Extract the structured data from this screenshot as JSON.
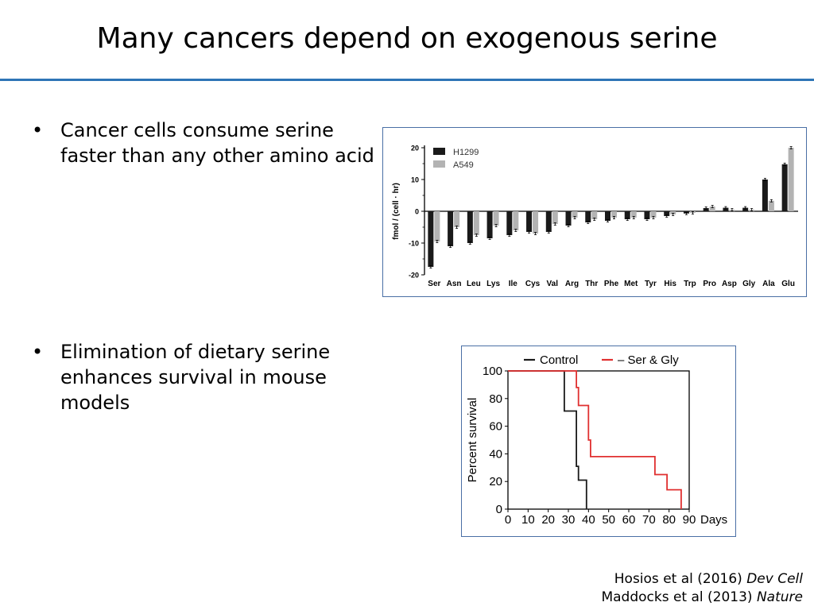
{
  "slide": {
    "title": "Many cancers depend on exogenous serine",
    "rule_color": "#2e75b6",
    "bullets": [
      {
        "symbol": "•",
        "text": "Cancer cells consume serine faster than any other amino acid"
      },
      {
        "symbol": "•",
        "text": "Elimination of dietary serine enhances survival in mouse models"
      }
    ],
    "citations": [
      {
        "authors": "Hosios et al (2016) ",
        "journal": "Dev Cell"
      },
      {
        "authors": "Maddocks et al (2013) ",
        "journal": "Nature"
      }
    ]
  },
  "chart_data": [
    {
      "type": "bar",
      "ylabel": "fmol / (cell · hr)",
      "ylim": [
        -20,
        20
      ],
      "yticks": [
        "20",
        "10",
        "0",
        "-10",
        "-20"
      ],
      "legend_placement": "top-left",
      "categories": [
        "Ser",
        "Asn",
        "Leu",
        "Lys",
        "Ile",
        "Cys",
        "Val",
        "Arg",
        "Thr",
        "Phe",
        "Met",
        "Tyr",
        "His",
        "Trp",
        "Pro",
        "Asp",
        "Gly",
        "Ala",
        "Glu"
      ],
      "series": [
        {
          "name": "H1299",
          "color": "#1a1a1a",
          "values": [
            -17.5,
            -11,
            -10,
            -8.5,
            -7.5,
            -6.5,
            -6.5,
            -4.5,
            -3.5,
            -3,
            -2.5,
            -2.5,
            -1.5,
            -0.7,
            1,
            1.1,
            1.1,
            10,
            14.8
          ]
        },
        {
          "name": "A549",
          "color": "#b3b3b3",
          "values": [
            -9.5,
            -5,
            -7.5,
            -4.5,
            -6,
            -7,
            -4,
            -2,
            -2.5,
            -2,
            -2,
            -2,
            -1,
            -0.5,
            1.5,
            0.5,
            0.5,
            3.3,
            20
          ]
        }
      ]
    },
    {
      "type": "line",
      "ylabel": "Percent survival",
      "xlabel": "Days",
      "xlim": [
        0,
        90
      ],
      "ylim": [
        0,
        100
      ],
      "xticks": [
        "0",
        "10",
        "20",
        "30",
        "40",
        "50",
        "60",
        "70",
        "80",
        "90"
      ],
      "yticks": [
        "0",
        "20",
        "40",
        "60",
        "80",
        "100"
      ],
      "legend_placement": "top",
      "series": [
        {
          "name": "Control",
          "color": "#1a1a1a",
          "points": [
            [
              0,
              100
            ],
            [
              28,
              100
            ],
            [
              28,
              71
            ],
            [
              34,
              71
            ],
            [
              34,
              31
            ],
            [
              35,
              31
            ],
            [
              35,
              21
            ],
            [
              39,
              21
            ],
            [
              39,
              0
            ]
          ]
        },
        {
          "name": "– Ser & Gly",
          "color": "#e03030",
          "points": [
            [
              0,
              100
            ],
            [
              34,
              100
            ],
            [
              34,
              88
            ],
            [
              35,
              88
            ],
            [
              35,
              75
            ],
            [
              40,
              75
            ],
            [
              40,
              50
            ],
            [
              41,
              50
            ],
            [
              41,
              38
            ],
            [
              73,
              38
            ],
            [
              73,
              25
            ],
            [
              79,
              25
            ],
            [
              79,
              14
            ],
            [
              86,
              14
            ],
            [
              86,
              0
            ]
          ]
        }
      ]
    }
  ]
}
